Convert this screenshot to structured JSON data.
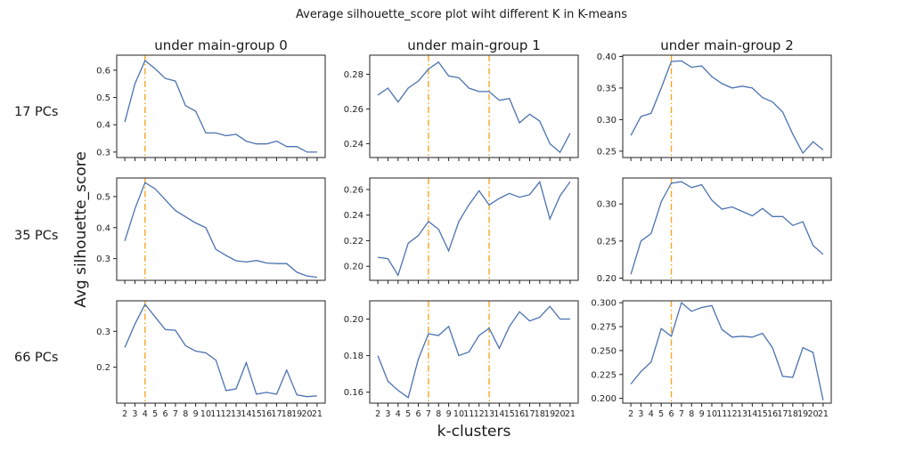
{
  "suptitle": "Average silhouette_score plot wiht different K in K-means",
  "col_titles": [
    "under main-group 0",
    "under main-group 1",
    "under main-group 2"
  ],
  "row_labels": [
    "17 PCs",
    "35 PCs",
    "66 PCs"
  ],
  "xlabel": "k-clusters",
  "ylabel": "Avg silhouette_score",
  "colors": {
    "line": "#4c72b0",
    "vline": "#f5a623",
    "axes": "#222222"
  },
  "chart_data": [
    {
      "type": "line",
      "row": 0,
      "col": 0,
      "x": [
        2,
        3,
        4,
        5,
        6,
        7,
        8,
        9,
        10,
        11,
        12,
        13,
        14,
        15,
        16,
        17,
        18,
        19,
        20,
        21
      ],
      "values": [
        0.41,
        0.55,
        0.635,
        0.605,
        0.57,
        0.56,
        0.47,
        0.45,
        0.37,
        0.37,
        0.36,
        0.365,
        0.34,
        0.33,
        0.33,
        0.34,
        0.32,
        0.32,
        0.3,
        0.3
      ],
      "ylim": [
        0.28,
        0.655
      ],
      "yticks": [
        0.3,
        0.4,
        0.5,
        0.6
      ],
      "ytick_labels": [
        "0.3",
        "0.4",
        "0.5",
        "0.6"
      ],
      "vline": 4
    },
    {
      "type": "line",
      "row": 0,
      "col": 1,
      "x": [
        2,
        3,
        4,
        5,
        6,
        7,
        8,
        9,
        10,
        11,
        12,
        13,
        14,
        15,
        16,
        17,
        18,
        19,
        20,
        21
      ],
      "values": [
        0.268,
        0.272,
        0.264,
        0.272,
        0.276,
        0.283,
        0.287,
        0.279,
        0.278,
        0.272,
        0.27,
        0.27,
        0.265,
        0.266,
        0.252,
        0.257,
        0.253,
        0.24,
        0.235,
        0.246
      ],
      "ylim": [
        0.232,
        0.291
      ],
      "yticks": [
        0.24,
        0.26,
        0.28
      ],
      "ytick_labels": [
        "0.24",
        "0.26",
        "0.28"
      ],
      "vline": [
        7,
        13
      ]
    },
    {
      "type": "line",
      "row": 0,
      "col": 2,
      "x": [
        2,
        3,
        4,
        5,
        6,
        7,
        8,
        9,
        10,
        11,
        12,
        13,
        14,
        15,
        16,
        17,
        18,
        19,
        20,
        21
      ],
      "values": [
        0.275,
        0.305,
        0.31,
        0.35,
        0.392,
        0.393,
        0.383,
        0.385,
        0.368,
        0.357,
        0.35,
        0.353,
        0.35,
        0.335,
        0.328,
        0.312,
        0.277,
        0.247,
        0.265,
        0.252
      ],
      "ylim": [
        0.24,
        0.402
      ],
      "yticks": [
        0.25,
        0.3,
        0.35,
        0.4
      ],
      "ytick_labels": [
        "0.25",
        "0.30",
        "0.35",
        "0.40"
      ],
      "vline": 6
    },
    {
      "type": "line",
      "row": 1,
      "col": 0,
      "x": [
        2,
        3,
        4,
        5,
        6,
        7,
        8,
        9,
        10,
        11,
        12,
        13,
        14,
        15,
        16,
        17,
        18,
        19,
        20,
        21
      ],
      "values": [
        0.357,
        0.46,
        0.545,
        0.525,
        0.49,
        0.455,
        0.435,
        0.415,
        0.4,
        0.33,
        0.31,
        0.293,
        0.289,
        0.294,
        0.286,
        0.284,
        0.284,
        0.256,
        0.244,
        0.24
      ],
      "ylim": [
        0.23,
        0.56
      ],
      "yticks": [
        0.3,
        0.4,
        0.5
      ],
      "ytick_labels": [
        "0.3",
        "0.4",
        "0.5"
      ],
      "vline": 4
    },
    {
      "type": "line",
      "row": 1,
      "col": 1,
      "x": [
        2,
        3,
        4,
        5,
        6,
        7,
        8,
        9,
        10,
        11,
        12,
        13,
        14,
        15,
        16,
        17,
        18,
        19,
        20,
        21
      ],
      "values": [
        0.207,
        0.206,
        0.193,
        0.218,
        0.224,
        0.235,
        0.229,
        0.212,
        0.235,
        0.248,
        0.259,
        0.248,
        0.253,
        0.257,
        0.254,
        0.256,
        0.266,
        0.237,
        0.255,
        0.266
      ],
      "ylim": [
        0.189,
        0.269
      ],
      "yticks": [
        0.2,
        0.22,
        0.24,
        0.26
      ],
      "ytick_labels": [
        "0.20",
        "0.22",
        "0.24",
        "0.26"
      ],
      "vline": [
        7,
        13
      ]
    },
    {
      "type": "line",
      "row": 1,
      "col": 2,
      "x": [
        2,
        3,
        4,
        5,
        6,
        7,
        8,
        9,
        10,
        11,
        12,
        13,
        14,
        15,
        16,
        17,
        18,
        19,
        20,
        21
      ],
      "values": [
        0.205,
        0.25,
        0.26,
        0.303,
        0.328,
        0.33,
        0.322,
        0.326,
        0.305,
        0.293,
        0.296,
        0.29,
        0.284,
        0.294,
        0.283,
        0.283,
        0.271,
        0.276,
        0.244,
        0.232
      ],
      "ylim": [
        0.197,
        0.335
      ],
      "yticks": [
        0.2,
        0.25,
        0.3
      ],
      "ytick_labels": [
        "0.20",
        "0.25",
        "0.30"
      ],
      "vline": 6
    },
    {
      "type": "line",
      "row": 2,
      "col": 0,
      "x": [
        2,
        3,
        4,
        5,
        6,
        7,
        8,
        9,
        10,
        11,
        12,
        13,
        14,
        15,
        16,
        17,
        18,
        19,
        20,
        21
      ],
      "values": [
        0.255,
        0.32,
        0.375,
        0.34,
        0.305,
        0.303,
        0.26,
        0.245,
        0.24,
        0.22,
        0.135,
        0.14,
        0.213,
        0.125,
        0.13,
        0.125,
        0.192,
        0.123,
        0.118,
        0.12
      ],
      "ylim": [
        0.1,
        0.385
      ],
      "yticks": [
        0.2,
        0.3
      ],
      "ytick_labels": [
        "0.2",
        "0.3"
      ],
      "vline": 4
    },
    {
      "type": "line",
      "row": 2,
      "col": 1,
      "x": [
        2,
        3,
        4,
        5,
        6,
        7,
        8,
        9,
        10,
        11,
        12,
        13,
        14,
        15,
        16,
        17,
        18,
        19,
        20,
        21
      ],
      "values": [
        0.18,
        0.166,
        0.161,
        0.157,
        0.178,
        0.192,
        0.191,
        0.196,
        0.18,
        0.182,
        0.191,
        0.195,
        0.184,
        0.196,
        0.204,
        0.199,
        0.201,
        0.207,
        0.2,
        0.2
      ],
      "ylim": [
        0.154,
        0.21
      ],
      "yticks": [
        0.16,
        0.18,
        0.2
      ],
      "ytick_labels": [
        "0.16",
        "0.18",
        "0.20"
      ],
      "vline": [
        7,
        13
      ]
    },
    {
      "type": "line",
      "row": 2,
      "col": 2,
      "x": [
        2,
        3,
        4,
        5,
        6,
        7,
        8,
        9,
        10,
        11,
        12,
        13,
        14,
        15,
        16,
        17,
        18,
        19,
        20,
        21
      ],
      "values": [
        0.215,
        0.228,
        0.238,
        0.273,
        0.265,
        0.3,
        0.291,
        0.295,
        0.297,
        0.272,
        0.264,
        0.265,
        0.264,
        0.268,
        0.253,
        0.223,
        0.222,
        0.253,
        0.248,
        0.198
      ],
      "ylim": [
        0.195,
        0.302
      ],
      "yticks": [
        0.2,
        0.225,
        0.25,
        0.275,
        0.3
      ],
      "ytick_labels": [
        "0.200",
        "0.225",
        "0.250",
        "0.275",
        "0.300"
      ],
      "vline": 6
    }
  ],
  "xticks": [
    2,
    3,
    4,
    5,
    6,
    7,
    8,
    9,
    10,
    11,
    12,
    13,
    14,
    15,
    16,
    17,
    18,
    19,
    20,
    21
  ],
  "xlim": [
    1.2,
    21.8
  ]
}
